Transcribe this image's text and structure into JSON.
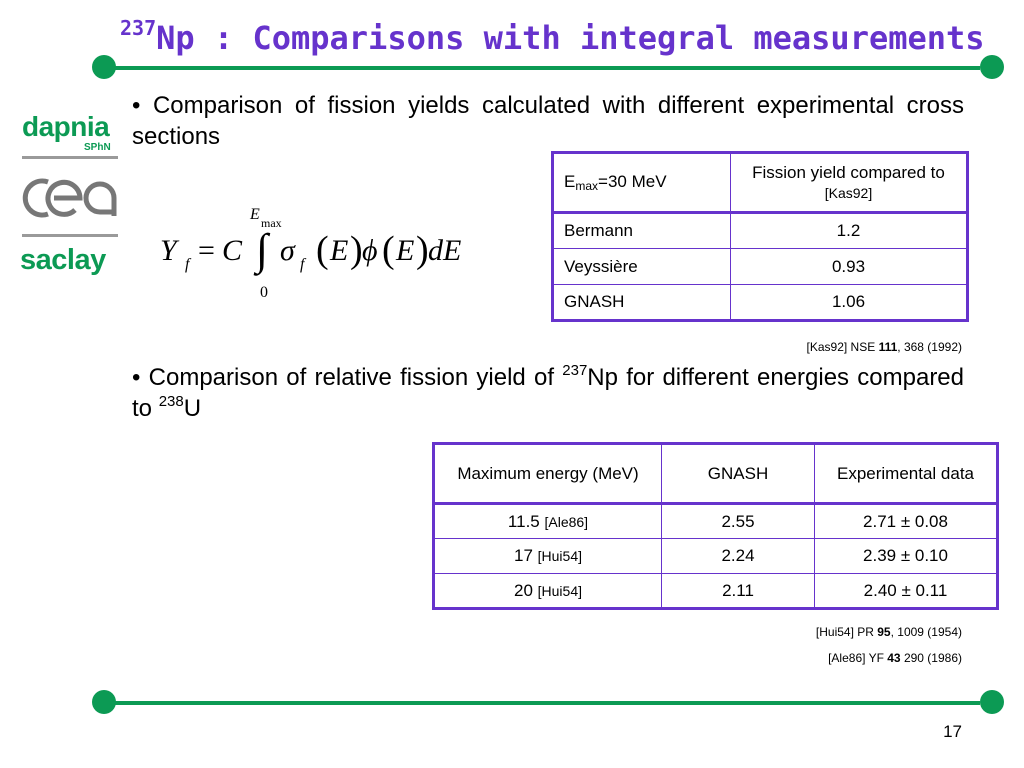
{
  "title": {
    "sup": "237",
    "main": "Np : Comparisons with integral measurements"
  },
  "logos": {
    "dapnia": "dapnia",
    "sphn": "SPhN",
    "cea": "cea",
    "saclay": "saclay"
  },
  "bullet1": {
    "marker": "•",
    "text": "Comparison of fission yields calculated with different experimental cross sections"
  },
  "formula": {
    "Y": "Y",
    "f_sub": "f",
    "eq": "=",
    "C": "C",
    "upper_E": "E",
    "upper_max": "max",
    "lower": "0",
    "integral": "∫",
    "sigma": "σ",
    "sigma_sub": "f",
    "lp1": "(",
    "E1": "E",
    "rp1": ")",
    "phi": "ϕ",
    "lp2": "(",
    "E2": "E",
    "rp2": ")",
    "dE": "dE"
  },
  "table1": {
    "header_e": "E",
    "header_sub": "max",
    "header_e_rest": "=30 MeV",
    "header_yield": "Fission yield compared to",
    "header_ref": "[Kas92]",
    "rows": [
      {
        "name": "Bermann",
        "value": "1.2"
      },
      {
        "name": "Veyssière",
        "value": "0.93"
      },
      {
        "name": "GNASH",
        "value": "1.06"
      }
    ]
  },
  "ref1": {
    "pre": "[Kas92] NSE ",
    "bold": "111",
    "post": ", 368 (1992)"
  },
  "bullet2": {
    "marker": "•",
    "text_a": "Comparison of relative fission yield of ",
    "sup_a": "237",
    "text_b": "Np for different energies compared to ",
    "sup_b": "238",
    "text_c": "U"
  },
  "table2": {
    "headers": [
      "Maximum energy (MeV)",
      "GNASH",
      "Experimental data"
    ],
    "rows": [
      {
        "energy": "11.5",
        "ref": "[Ale86]",
        "gnash": "2.55",
        "exp": "2.71 ± 0.08"
      },
      {
        "energy": "17",
        "ref": "[Hui54]",
        "gnash": "2.24",
        "exp": "2.39 ± 0.10"
      },
      {
        "energy": "20",
        "ref": "[Hui54]",
        "gnash": "2.11",
        "exp": "2.40 ± 0.11"
      }
    ]
  },
  "ref2": {
    "pre": "[Hui54] PR ",
    "bold": "95",
    "post": ", 1009 (1954)"
  },
  "ref3": {
    "pre": "[Ale86] YF ",
    "bold": "43",
    "post": " 290 (1986)"
  },
  "page_number": "17",
  "colors": {
    "accent_green": "#0c9a54",
    "title_purple": "#6633cc"
  }
}
